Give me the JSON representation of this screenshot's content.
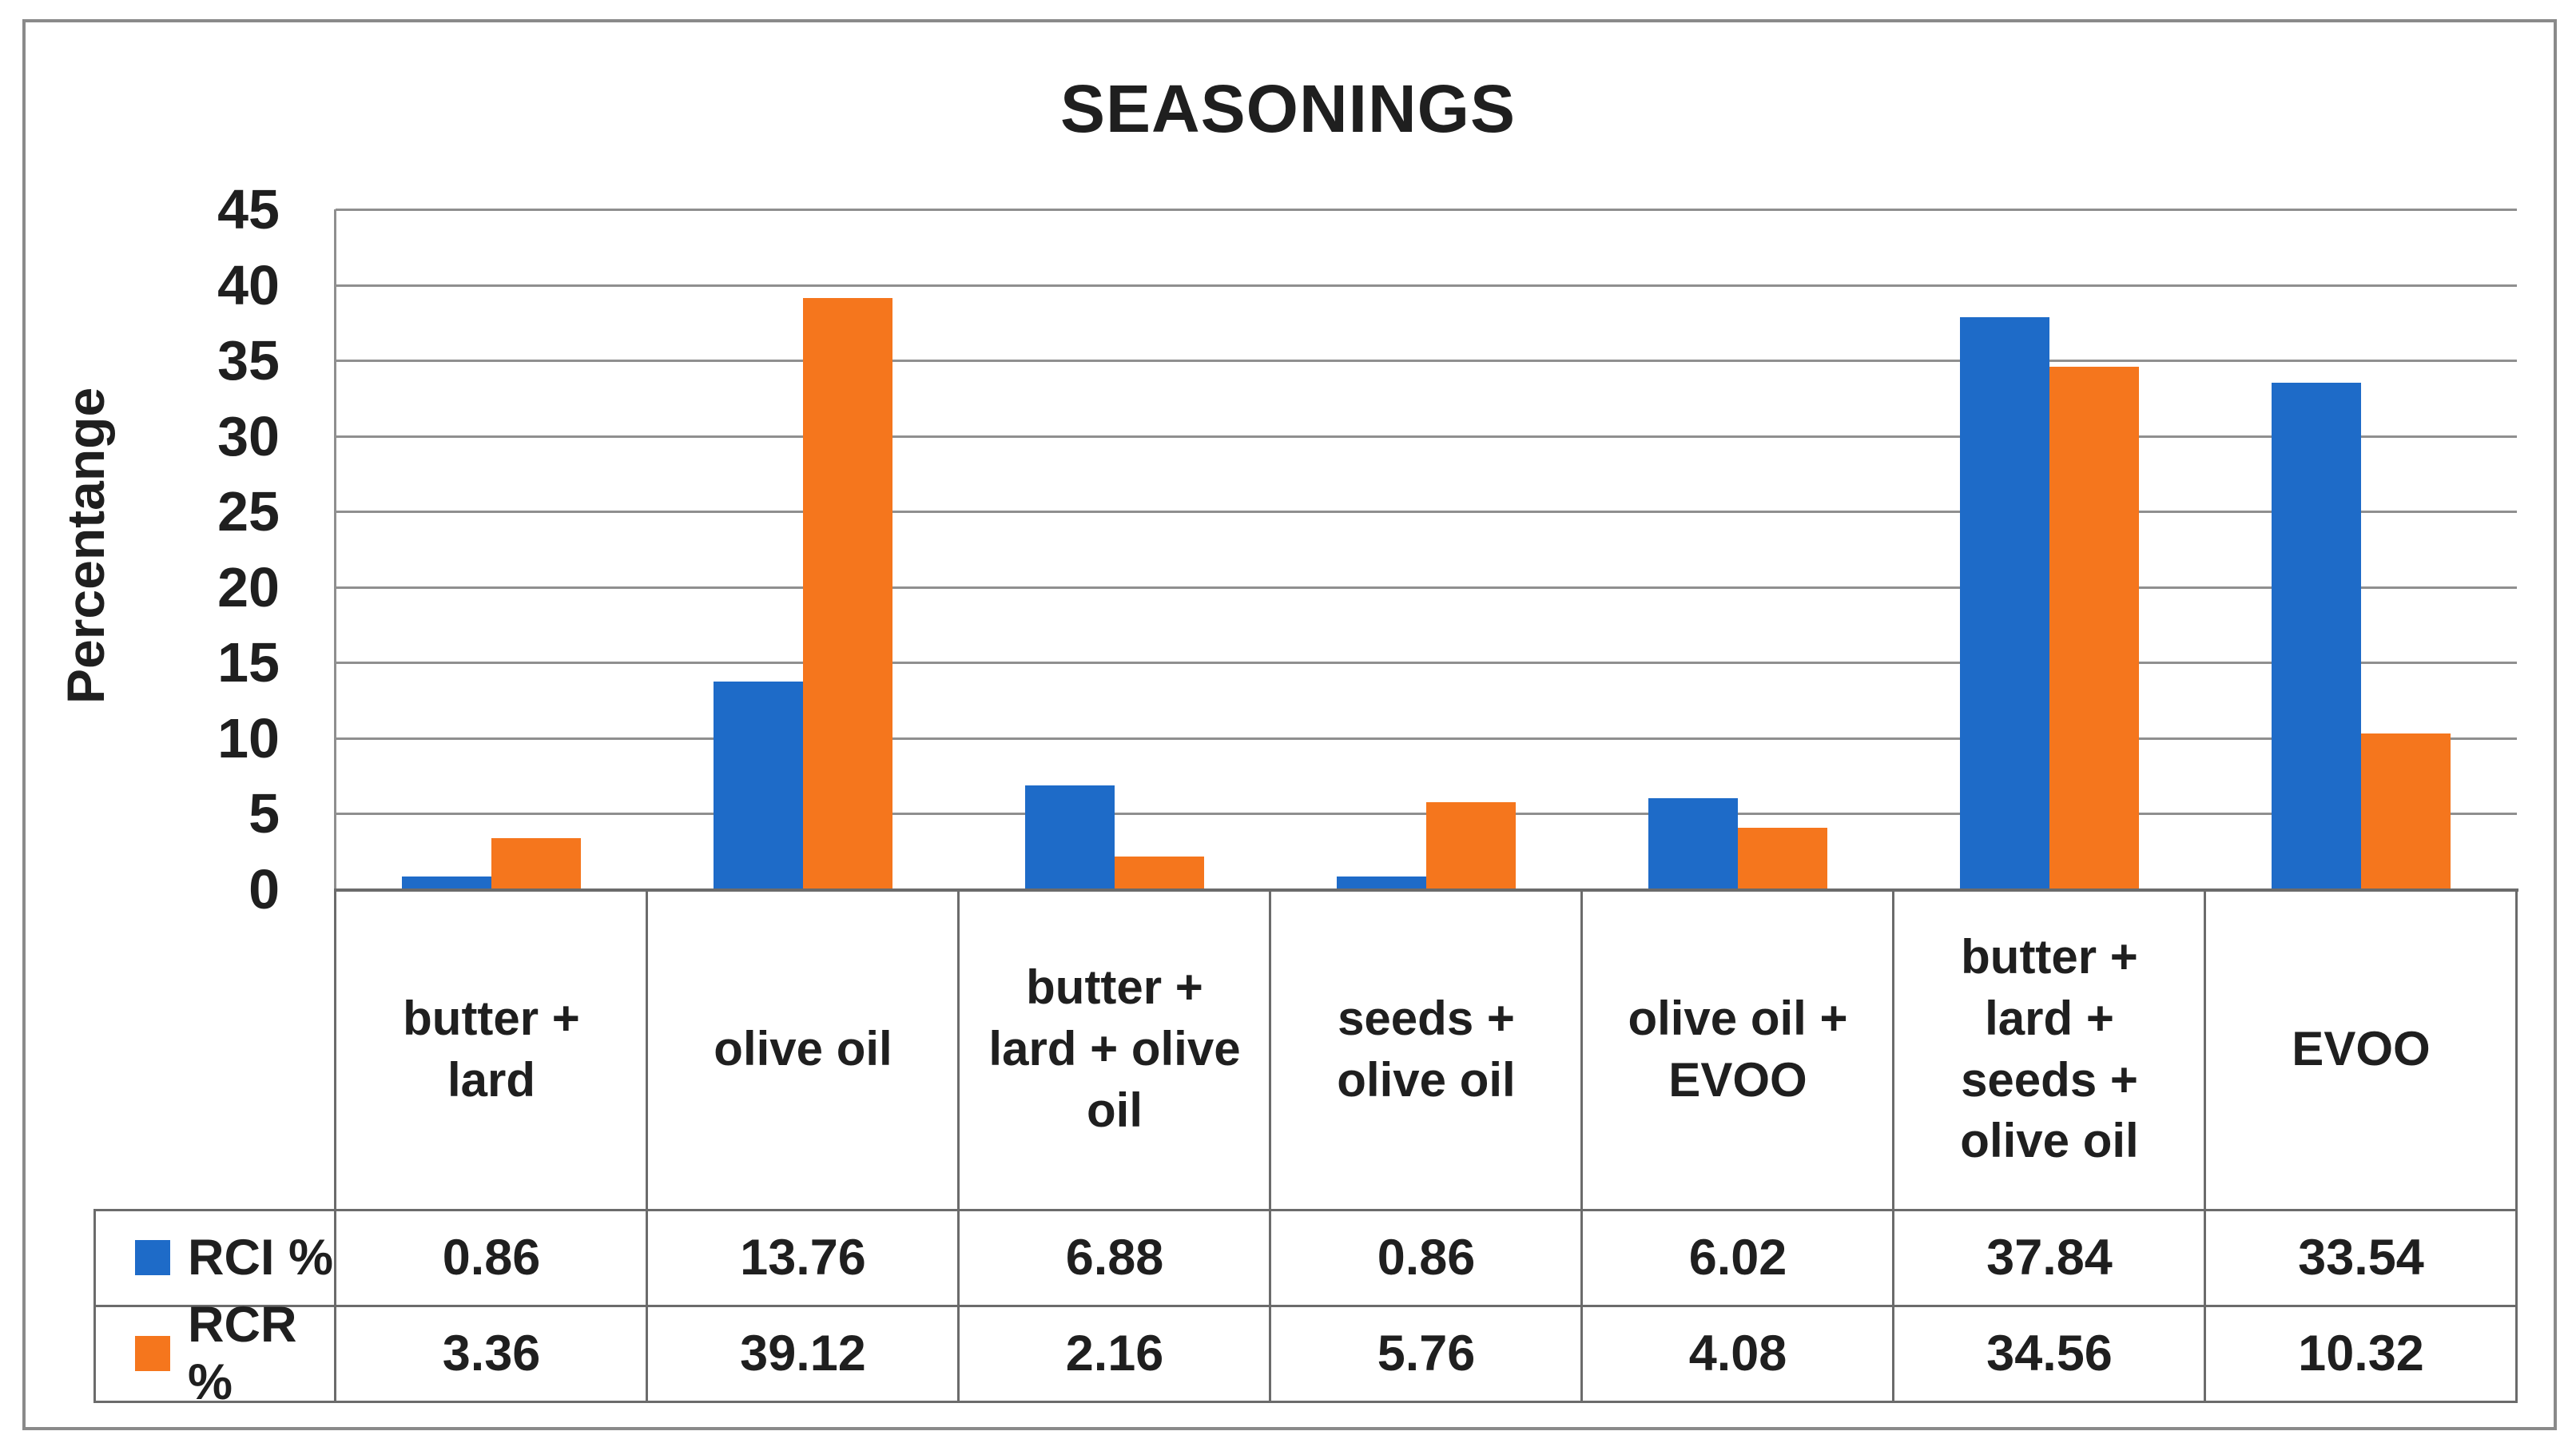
{
  "title": "SEASONINGS",
  "chart_data": {
    "type": "bar",
    "title": "SEASONINGS",
    "xlabel": "",
    "ylabel": "Percentange",
    "ylim": [
      0,
      45
    ],
    "ytick_step": 5,
    "yticks": [
      45,
      40,
      35,
      30,
      25,
      20,
      15,
      10,
      5,
      0
    ],
    "grid": "horizontal",
    "legend_position": "bottom-table-left",
    "categories": [
      "butter +\nlard",
      "olive oil",
      "butter +\nlard + olive\noil",
      "seeds +\nolive oil",
      "olive oil +\nEVOO",
      "butter +\nlard +\nseeds +\nolive oil",
      "EVOO"
    ],
    "series": [
      {
        "name": "RCI %",
        "color": "#1E6BC8",
        "values": [
          0.86,
          13.76,
          6.88,
          0.86,
          6.02,
          37.84,
          33.54
        ]
      },
      {
        "name": "RCR %",
        "color": "#F5761D",
        "values": [
          3.36,
          39.12,
          2.16,
          5.76,
          4.08,
          34.56,
          10.32
        ]
      }
    ]
  },
  "colors": {
    "rci_blue": "#1E6BC8",
    "rcr_orange": "#F5761D",
    "gridline": "#8f8f8f",
    "axis_line": "#6b6b6b",
    "table_border": "#6b6b6b",
    "outer_border": "#8a8a8a",
    "text": "#1f1f1f",
    "background": "#ffffff"
  }
}
